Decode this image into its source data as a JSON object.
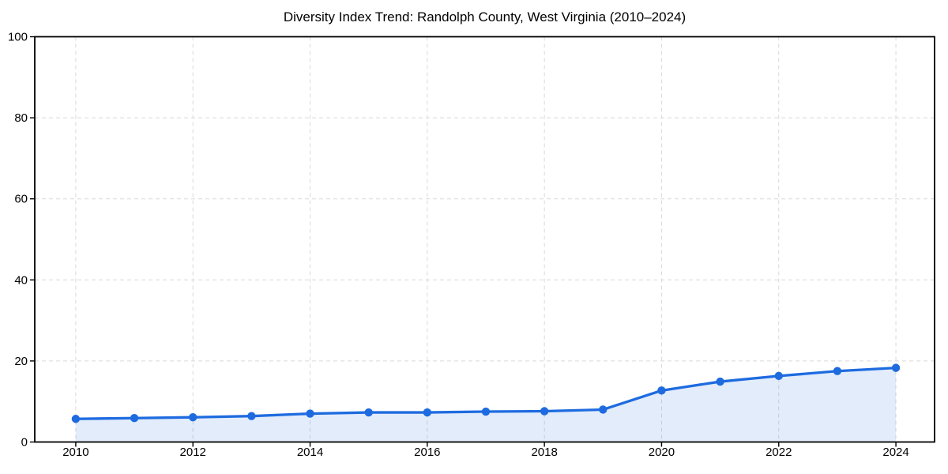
{
  "title": "Diversity Index Trend: Randolph County, West Virginia (2010–2024)",
  "chart_data": {
    "type": "area",
    "title": "Diversity Index Trend: Randolph County, West Virginia (2010–2024)",
    "x": [
      2010,
      2011,
      2012,
      2013,
      2014,
      2015,
      2016,
      2017,
      2018,
      2019,
      2020,
      2021,
      2022,
      2023,
      2024
    ],
    "series": [
      {
        "name": "Diversity Index",
        "values": [
          5.7,
          5.9,
          6.1,
          6.4,
          7.0,
          7.3,
          7.3,
          7.5,
          7.6,
          8.0,
          12.7,
          14.9,
          16.3,
          17.5,
          18.3
        ]
      }
    ],
    "xlabel": "",
    "ylabel": "",
    "xlim": [
      2009.3,
      2024.66
    ],
    "ylim": [
      0,
      100
    ],
    "xticks": [
      2010,
      2012,
      2014,
      2016,
      2018,
      2020,
      2022,
      2024
    ],
    "yticks": [
      0,
      20,
      40,
      60,
      80,
      100
    ],
    "grid": true,
    "grid_style": "dashed",
    "legend": false,
    "marker": "circle",
    "colors": {
      "line": "#1e6be0",
      "fill": "rgba(30, 107, 224, 0.13)",
      "grid": "#d9d9d9",
      "axis": "#000000",
      "text": "#000000",
      "background": "#ffffff"
    }
  }
}
